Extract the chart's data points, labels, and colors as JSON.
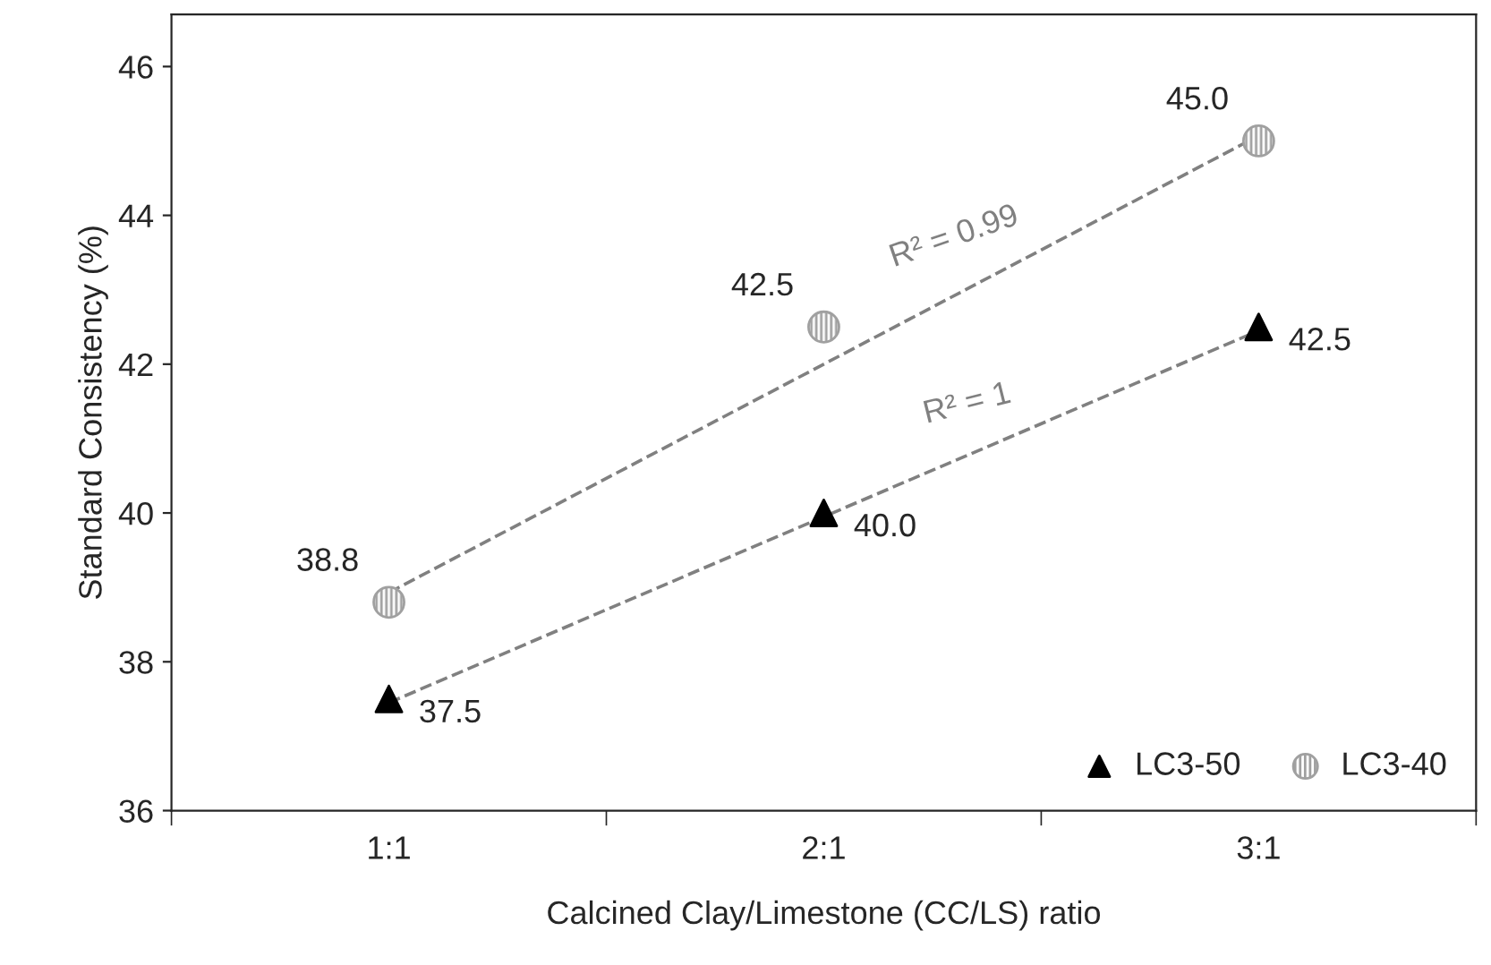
{
  "chart_data": {
    "type": "scatter",
    "xlabel": "Calcined Clay/Limestone (CC/LS) ratio",
    "ylabel": "Standard Consistency (%)",
    "categories": [
      "1:1",
      "2:1",
      "3:1"
    ],
    "series": [
      {
        "name": "LC3-50",
        "marker": "triangle",
        "color": "#000000",
        "values": [
          37.5,
          40.0,
          42.5
        ],
        "value_labels": [
          "37.5",
          "40.0",
          "42.5"
        ]
      },
      {
        "name": "LC3-40",
        "marker": "circle",
        "color": "#a0a0a0",
        "values": [
          38.8,
          42.5,
          45.0
        ],
        "value_labels": [
          "38.8",
          "42.5",
          "45.0"
        ]
      },
      {
        "type": "line",
        "line_style": "dashed",
        "marker": "none",
        "color": "#808080",
        "values": [
          37.45,
          39.95,
          42.45
        ]
      },
      {
        "type": "line",
        "line_style": "dashed",
        "marker": "none",
        "color": "#808080",
        "values": [
          38.93,
          42.0,
          45.07
        ]
      }
    ],
    "annotations": [
      "R² = 0.99",
      "R² = 1"
    ],
    "ylim": [
      36,
      46.7
    ],
    "yticks": [
      36,
      38,
      40,
      42,
      44,
      46
    ],
    "grid": false,
    "legend": "bottom right"
  }
}
